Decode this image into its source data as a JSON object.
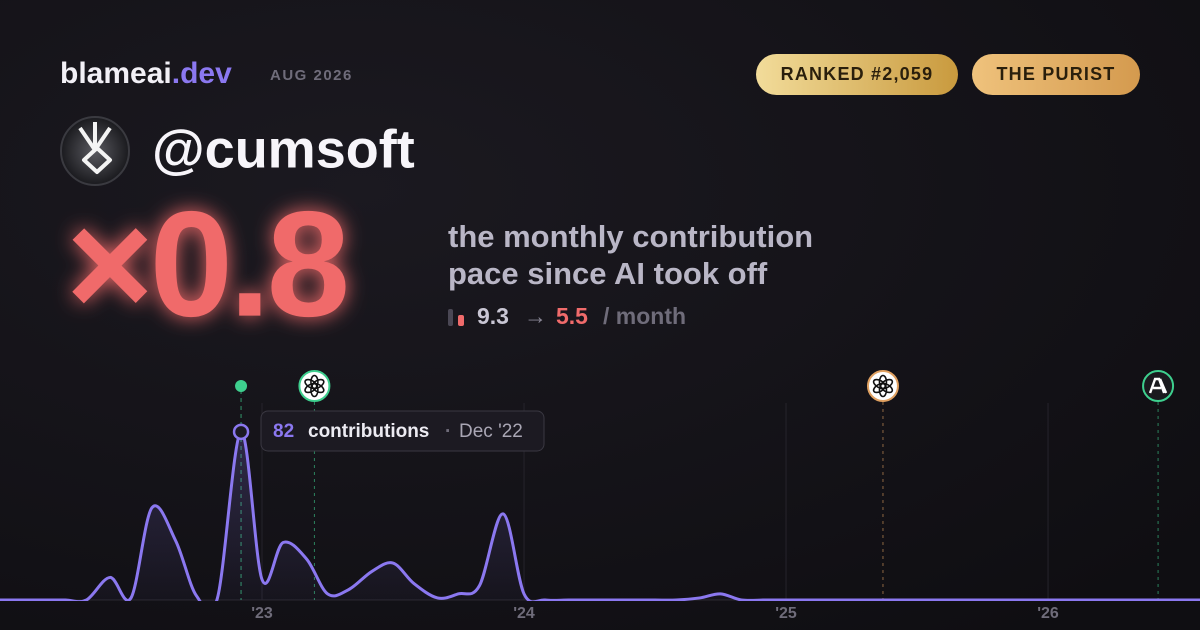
{
  "header": {
    "brand": "blameai",
    "brand_tld": ".dev",
    "period": "AUG 2026",
    "rank_badge": "RANKED #2,059",
    "type_badge": "THE PURIST",
    "handle": "@cumsoft",
    "multiplier": "×0.8",
    "description": [
      "the monthly contribution",
      "pace since AI took off"
    ],
    "pace_before": "9.3",
    "arrow": "→",
    "pace_after": "5.5",
    "pace_unit": "/ month"
  },
  "chart_data": {
    "type": "line",
    "x": [
      2022,
      2022.08,
      2022.17,
      2022.25,
      2022.33,
      2022.42,
      2022.5,
      2022.58,
      2022.67,
      2022.75,
      2022.83,
      2022.92,
      2023,
      2023.08,
      2023.17,
      2023.25,
      2023.33,
      2023.42,
      2023.5,
      2023.58,
      2023.67,
      2023.75,
      2023.83,
      2023.92,
      2024,
      2024.08,
      2024.17,
      2024.25,
      2024.33,
      2024.42,
      2024.5,
      2024.58,
      2024.67,
      2024.75,
      2024.83,
      2024.92,
      2025,
      2025.08,
      2025.17,
      2025.25,
      2025.33,
      2025.42,
      2025.5,
      2025.58,
      2025.67,
      2025.75,
      2025.83,
      2025.92,
      2026,
      2026.08,
      2026.17,
      2026.25,
      2026.33,
      2026.42,
      2026.5,
      2026.58
    ],
    "series": [
      {
        "name": "contributions",
        "color": "#8b78f0",
        "values": [
          0,
          0,
          0,
          0,
          0,
          11,
          1,
          45,
          29,
          2,
          1,
          82,
          10,
          28,
          20,
          3,
          5,
          14,
          18,
          8,
          1,
          3,
          7,
          42,
          3,
          0,
          0,
          0,
          0,
          0,
          0,
          0,
          1,
          3,
          0,
          0,
          0,
          0,
          0,
          0,
          0,
          0,
          0,
          0,
          0,
          0,
          0,
          0,
          0,
          0,
          0,
          0,
          0,
          0,
          0,
          0
        ]
      }
    ],
    "xlim": [
      2022,
      2026.58
    ],
    "ylim": [
      0,
      98
    ],
    "xticks": [
      {
        "value": 2023,
        "label": "'23"
      },
      {
        "value": 2024,
        "label": "'24"
      },
      {
        "value": 2025,
        "label": "'25"
      },
      {
        "value": 2026,
        "label": "'26"
      }
    ],
    "grid": true,
    "highlight": 11,
    "tooltip": {
      "label": "contributions",
      "separator": "·",
      "date": "Dec '22"
    },
    "events": [
      {
        "x": 2023.2,
        "icon": "openai",
        "color": "#3ecf8e"
      },
      {
        "x": 2025.37,
        "icon": "openai",
        "color": "#e0a060"
      },
      {
        "x": 2026.42,
        "icon": "anthropic",
        "color": "#3ecf8e"
      }
    ]
  }
}
